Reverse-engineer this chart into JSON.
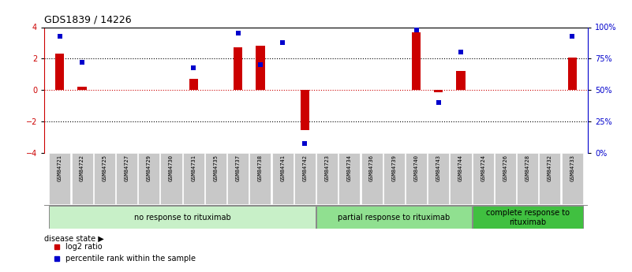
{
  "title": "GDS1839 / 14226",
  "samples": [
    "GSM84721",
    "GSM84722",
    "GSM84725",
    "GSM84727",
    "GSM84729",
    "GSM84730",
    "GSM84731",
    "GSM84735",
    "GSM84737",
    "GSM84738",
    "GSM84741",
    "GSM84742",
    "GSM84723",
    "GSM84734",
    "GSM84736",
    "GSM84739",
    "GSM84740",
    "GSM84743",
    "GSM84744",
    "GSM84724",
    "GSM84726",
    "GSM84728",
    "GSM84732",
    "GSM84733"
  ],
  "log2_ratio": [
    2.3,
    0.2,
    0.0,
    0.0,
    0.0,
    0.0,
    0.7,
    0.0,
    2.7,
    2.8,
    0.0,
    -2.55,
    0.0,
    0.0,
    0.0,
    0.0,
    3.65,
    -0.15,
    1.2,
    0.0,
    0.0,
    0.0,
    0.0,
    2.05
  ],
  "percentile_rank": [
    93,
    72,
    null,
    null,
    null,
    null,
    68,
    null,
    95,
    70,
    88,
    8,
    null,
    null,
    null,
    null,
    98,
    40,
    80,
    null,
    null,
    null,
    null,
    93
  ],
  "groups": [
    {
      "label": "no response to rituximab",
      "start": 0,
      "end": 12,
      "color": "#c8f0c8"
    },
    {
      "label": "partial response to rituximab",
      "start": 12,
      "end": 19,
      "color": "#90e090"
    },
    {
      "label": "complete response to\nrituximab",
      "start": 19,
      "end": 24,
      "color": "#40c040"
    }
  ],
  "bar_color_red": "#cc0000",
  "bar_color_blue": "#0000cc",
  "left_ylim": [
    -4,
    4
  ],
  "right_ylim": [
    0,
    100
  ],
  "left_yticks": [
    -4,
    -2,
    0,
    2,
    4
  ],
  "right_yticks": [
    0,
    25,
    50,
    75,
    100
  ],
  "right_yticklabels": [
    "0%",
    "25%",
    "50%",
    "75%",
    "100%"
  ],
  "legend_items": [
    "log2 ratio",
    "percentile rank within the sample"
  ],
  "disease_state_label": "disease state",
  "background_color": "#ffffff",
  "sample_box_color": "#c8c8c8",
  "title_fontsize": 9,
  "tick_fontsize": 7,
  "sample_label_fontsize": 5,
  "group_label_fontsize": 7,
  "legend_fontsize": 7,
  "bar_width": 0.4
}
